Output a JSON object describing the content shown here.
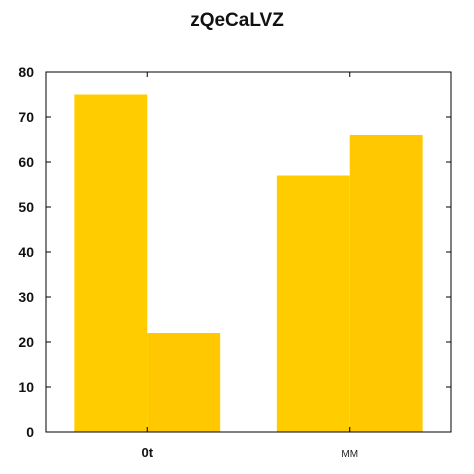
{
  "chart_data": {
    "type": "bar",
    "title": "zQeCaLVZ",
    "categories": [
      "0t",
      "MM"
    ],
    "series": [
      {
        "values": [
          75,
          57
        ]
      },
      {
        "values": [
          22,
          66
        ]
      }
    ],
    "series_colors": [
      "#FFCC00",
      "#FFC800"
    ],
    "ylim": [
      0,
      80
    ],
    "yticks": [
      0,
      10,
      20,
      30,
      40,
      50,
      60,
      70,
      80
    ],
    "xlabel": "",
    "ylabel": "",
    "grid": false
  }
}
